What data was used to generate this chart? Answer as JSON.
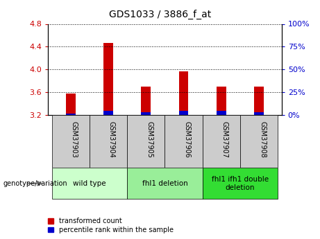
{
  "title": "GDS1033 / 3886_f_at",
  "samples": [
    "GSM37903",
    "GSM37904",
    "GSM37905",
    "GSM37906",
    "GSM37907",
    "GSM37908"
  ],
  "red_values": [
    3.57,
    4.47,
    3.7,
    3.97,
    3.7,
    3.7
  ],
  "blue_values": [
    3.22,
    3.27,
    3.25,
    3.27,
    3.27,
    3.24
  ],
  "baseline": 3.2,
  "ylim": [
    3.2,
    4.8
  ],
  "yticks": [
    3.2,
    3.6,
    4.0,
    4.4,
    4.8
  ],
  "right_yticks": [
    0,
    25,
    50,
    75,
    100
  ],
  "right_ylim": [
    0,
    100
  ],
  "groups": [
    {
      "label": "wild type",
      "samples": [
        0,
        1
      ],
      "color": "#ccffcc"
    },
    {
      "label": "fhl1 deletion",
      "samples": [
        2,
        3
      ],
      "color": "#99ee99"
    },
    {
      "label": "fhl1 ifh1 double\ndeletion",
      "samples": [
        4,
        5
      ],
      "color": "#33dd33"
    }
  ],
  "bar_color_red": "#cc0000",
  "bar_color_blue": "#0000cc",
  "tick_color_left": "#cc0000",
  "tick_color_right": "#0000cc",
  "legend_label_red": "transformed count",
  "legend_label_blue": "percentile rank within the sample",
  "genotype_label": "genotype/variation",
  "sample_box_color": "#cccccc",
  "bar_width": 0.25
}
